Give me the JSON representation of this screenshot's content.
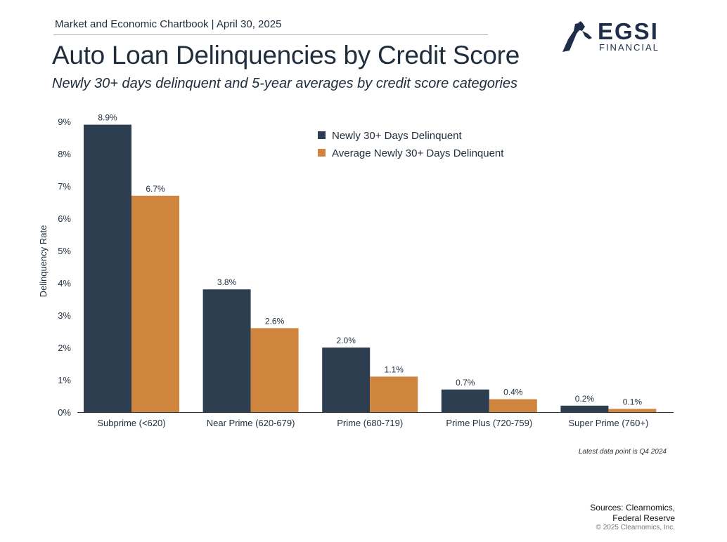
{
  "header": {
    "chartbook": "Market and Economic Chartbook | April 30, 2025",
    "title": "Auto Loan Delinquencies by Credit Score",
    "subtitle": "Newly 30+ days delinquent and 5-year averages by credit score categories"
  },
  "logo": {
    "main": "EGSI",
    "sub": "FINANCIAL",
    "icon": "hand-torch-icon",
    "color": "#1f2d4a"
  },
  "colors": {
    "series1": "#2c3e50",
    "series2": "#d0853e"
  },
  "chart_data": {
    "type": "bar",
    "categories": [
      "Subprime (<620)",
      "Near Prime (620-679)",
      "Prime (680-719)",
      "Prime Plus (720-759)",
      "Super Prime (760+)"
    ],
    "series": [
      {
        "name": "Newly 30+ Days Delinquent",
        "values": [
          8.9,
          3.8,
          2.0,
          0.7,
          0.2
        ],
        "labels": [
          "8.9%",
          "3.8%",
          "2.0%",
          "0.7%",
          "0.2%"
        ]
      },
      {
        "name": "Average Newly 30+ Days Delinquent",
        "values": [
          6.7,
          2.6,
          1.1,
          0.4,
          0.1
        ],
        "labels": [
          "6.7%",
          "2.6%",
          "1.1%",
          "0.4%",
          "0.1%"
        ]
      }
    ],
    "ylabel": "Delinquency Rate",
    "xlabel": "",
    "ylim": [
      0,
      9
    ],
    "yticks": [
      "0%",
      "1%",
      "2%",
      "3%",
      "4%",
      "5%",
      "6%",
      "7%",
      "8%",
      "9%"
    ],
    "grid": false,
    "legend": "top-center"
  },
  "footer": {
    "note": "Latest data point is Q4 2024",
    "sources_line1": "Sources: Clearnomics,",
    "sources_line2": "Federal Reserve",
    "copyright": "© 2025 Clearnomics, Inc."
  }
}
